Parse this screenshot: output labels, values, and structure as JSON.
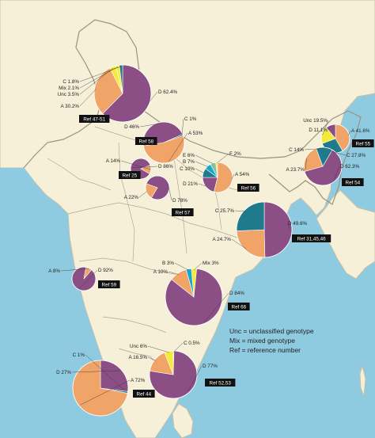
{
  "colors": {
    "sea": "#8fcbe0",
    "land": "#f7f0d8",
    "border": "#b9b0a0",
    "D": "#8b4f86",
    "A": "#f0a467",
    "B": "#1aa7cc",
    "C": "#1f7a8c",
    "E": "#8ac0a0",
    "F": "#f4ea3a",
    "Unc": "#f4ea3a",
    "Mix": "#f4ea3a"
  },
  "legend": {
    "unc": "Unc = unclassified genotype",
    "mix": "Mix = mixed genotype",
    "ref": "Ref = reference number"
  },
  "pies": [
    {
      "id": "kashmir",
      "ref": "Ref 47-51",
      "slices": [
        {
          "key": "D",
          "label": "D 62.4%",
          "value": 62.4
        },
        {
          "key": "A",
          "label": "A 30.2%",
          "value": 30.2
        },
        {
          "key": "Unc",
          "label": "Unc 3.5%",
          "value": 3.5
        },
        {
          "key": "Mix",
          "label": "Mix 2.1%",
          "value": 2.1
        },
        {
          "key": "C",
          "label": "C 1.8%",
          "value": 1.8
        }
      ]
    },
    {
      "id": "delhi",
      "ref": "Ref 58",
      "slices": [
        {
          "key": "A",
          "label": "A 53%",
          "value": 53
        },
        {
          "key": "D",
          "label": "D 46%",
          "value": 46
        },
        {
          "key": "C",
          "label": "C 1%",
          "value": 1
        }
      ]
    },
    {
      "id": "agra",
      "ref": "Ref 25",
      "slices": [
        {
          "key": "D",
          "label": "D 86%",
          "value": 86
        },
        {
          "key": "A",
          "label": "A 14%",
          "value": 14
        }
      ]
    },
    {
      "id": "mp",
      "ref": "Ref 57",
      "slices": [
        {
          "key": "D",
          "label": "D 78%",
          "value": 78
        },
        {
          "key": "A",
          "label": "A 22%",
          "value": 22
        }
      ]
    },
    {
      "id": "up",
      "ref": "Ref 56",
      "slices": [
        {
          "key": "A",
          "label": "A 54%",
          "value": 54
        },
        {
          "key": "D",
          "label": "D 21%",
          "value": 21
        },
        {
          "key": "C",
          "label": "C 10%",
          "value": 10
        },
        {
          "key": "B",
          "label": "B 7%",
          "value": 7
        },
        {
          "key": "E",
          "label": "E 6%",
          "value": 6
        },
        {
          "key": "F",
          "label": "F 2%",
          "value": 2
        }
      ]
    },
    {
      "id": "ne",
      "ref": "Ref 55",
      "slices": [
        {
          "key": "A",
          "label": "A 41.6%",
          "value": 41.6
        },
        {
          "key": "C",
          "label": "C 27.8%",
          "value": 27.8
        },
        {
          "key": "Unc",
          "label": "Unc 19.5%",
          "value": 19.5
        },
        {
          "key": "D",
          "label": "D 11.1%",
          "value": 11.1
        }
      ]
    },
    {
      "id": "assam",
      "ref": "Ref 54",
      "slices": [
        {
          "key": "D",
          "label": "D 62.3%",
          "value": 62.3
        },
        {
          "key": "A",
          "label": "A 23.7%",
          "value": 23.7
        },
        {
          "key": "C",
          "label": "C 14%",
          "value": 14
        }
      ]
    },
    {
      "id": "kolkata",
      "ref": "Ref 31,45,46",
      "slices": [
        {
          "key": "D",
          "label": "D 49.6%",
          "value": 49.6
        },
        {
          "key": "A",
          "label": "A 24.7%",
          "value": 24.7
        },
        {
          "key": "C",
          "label": "C 25.7%",
          "value": 25.7
        }
      ]
    },
    {
      "id": "mumbai",
      "ref": "Ref 59",
      "slices": [
        {
          "key": "D",
          "label": "D 92%",
          "value": 92
        },
        {
          "key": "A",
          "label": "A 8%",
          "value": 8
        }
      ]
    },
    {
      "id": "ap",
      "ref": "Ref 66",
      "slices": [
        {
          "key": "Mix",
          "label": "Mix 3%",
          "value": 3
        },
        {
          "key": "D",
          "label": "D 84%",
          "value": 84
        },
        {
          "key": "A",
          "label": "A 10%",
          "value": 10
        },
        {
          "key": "B",
          "label": "B 3%",
          "value": 3
        }
      ]
    },
    {
      "id": "kerala",
      "ref": "Ref 44",
      "slices": [
        {
          "key": "D",
          "label": "D 27%",
          "value": 27
        },
        {
          "key": "C",
          "label": "C 1%",
          "value": 1
        },
        {
          "key": "A",
          "label": "A 72%",
          "value": 72
        }
      ]
    },
    {
      "id": "tn",
      "ref": "Ref 52,53",
      "slices": [
        {
          "key": "C",
          "label": "C 0.5%",
          "value": 0.5
        },
        {
          "key": "D",
          "label": "D 77%",
          "value": 77
        },
        {
          "key": "A",
          "label": "A 16.5%",
          "value": 16.5
        },
        {
          "key": "Unc",
          "label": "Unc 6%",
          "value": 6
        }
      ]
    }
  ]
}
